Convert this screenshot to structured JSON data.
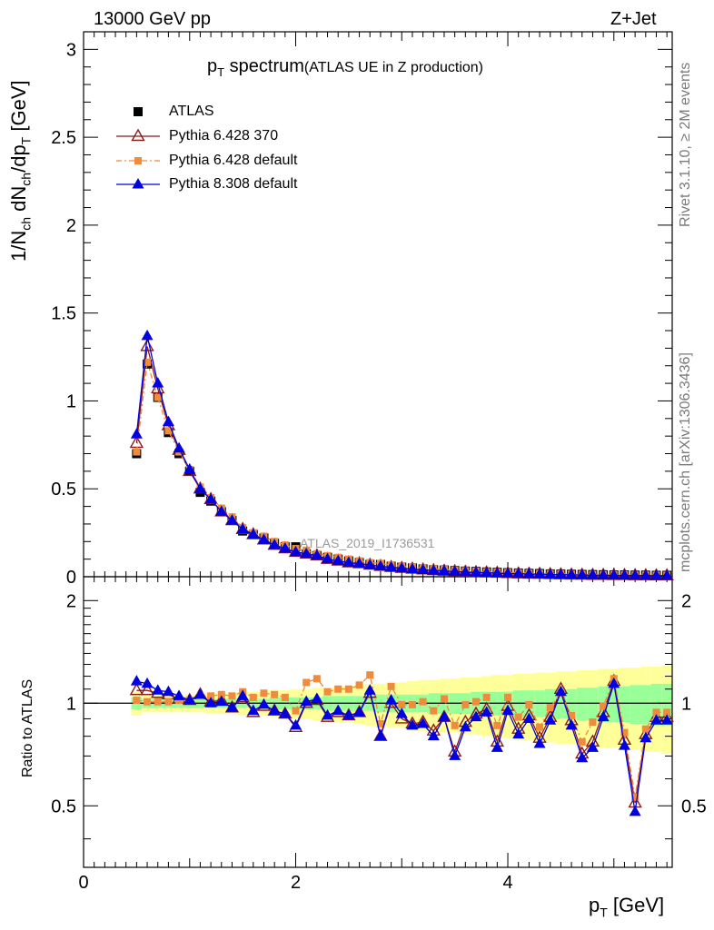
{
  "header": {
    "energy": "13000 GeV pp",
    "process": "Z+Jet",
    "rivet": "Rivet 3.1.10, ≥ 2M events",
    "mcplots": "mcplots.cern.ch [arXiv:1306.3436]",
    "analysis": "ATLAS_2019_I1736531"
  },
  "title": {
    "main": "p",
    "sub": "T",
    "rest": " spectrum",
    "small": "(ATLAS UE in Z production)"
  },
  "axes": {
    "top_ylabel": "1/N",
    "top_ylabel_sub1": "ch",
    "top_ylabel_mid": " dN",
    "top_ylabel_sub2": "ch",
    "top_ylabel_mid2": "/dp",
    "top_ylabel_sub3": "T",
    "top_ylabel_unit": " [GeV]",
    "bottom_ylabel": "Ratio to ATLAS",
    "xlabel_main": "p",
    "xlabel_sub": "T",
    "xlabel_unit": " [GeV]"
  },
  "chart_data": [
    {
      "type": "scatter",
      "panel": "main",
      "xlim": [
        0,
        5.55
      ],
      "ylim": [
        0,
        3.1
      ],
      "yticks": [
        0,
        0.5,
        1,
        1.5,
        2,
        2.5,
        3
      ],
      "ytick_labels": [
        "0",
        "0.5",
        "1",
        "1.5",
        "2",
        "2.5",
        "3"
      ],
      "legend_position": "top-left",
      "x": [
        0.5,
        0.6,
        0.7,
        0.8,
        0.9,
        1.0,
        1.1,
        1.2,
        1.3,
        1.4,
        1.5,
        1.6,
        1.7,
        1.8,
        1.9,
        2.0,
        2.1,
        2.2,
        2.3,
        2.4,
        2.5,
        2.6,
        2.7,
        2.8,
        2.9,
        3.0,
        3.1,
        3.2,
        3.3,
        3.4,
        3.5,
        3.6,
        3.7,
        3.8,
        3.9,
        4.0,
        4.1,
        4.2,
        4.3,
        4.4,
        4.5,
        4.6,
        4.7,
        4.8,
        4.9,
        5.0,
        5.1,
        5.2,
        5.3,
        5.4,
        5.5
      ],
      "series": [
        {
          "name": "ATLAS",
          "color": "#000000",
          "marker": "square",
          "values": [
            0.7,
            1.21,
            1.02,
            0.82,
            0.7,
            0.6,
            0.48,
            0.43,
            0.37,
            0.32,
            0.26,
            0.24,
            0.22,
            0.19,
            0.17,
            0.17,
            0.13,
            0.12,
            0.11,
            0.1,
            0.09,
            0.08,
            0.07,
            0.07,
            0.06,
            0.055,
            0.05,
            0.045,
            0.04,
            0.038,
            0.035,
            0.032,
            0.03,
            0.027,
            0.025,
            0.023,
            0.021,
            0.019,
            0.018,
            0.016,
            0.015,
            0.014,
            0.013,
            0.012,
            0.011,
            0.01,
            0.01,
            0.009,
            0.009,
            0.008,
            0.008
          ]
        },
        {
          "name": "Pythia 6.428 370",
          "color": "#8b1a1a",
          "marker": "triangle-open",
          "values": [
            0.76,
            1.31,
            1.07,
            0.86,
            0.72,
            0.6,
            0.5,
            0.44,
            0.37,
            0.32,
            0.27,
            0.24,
            0.21,
            0.18,
            0.16,
            0.14,
            0.13,
            0.12,
            0.1,
            0.09,
            0.08,
            0.075,
            0.067,
            0.06,
            0.054,
            0.049,
            0.044,
            0.04,
            0.036,
            0.033,
            0.03,
            0.027,
            0.025,
            0.023,
            0.021,
            0.019,
            0.017,
            0.016,
            0.015,
            0.013,
            0.012,
            0.011,
            0.01,
            0.009,
            0.009,
            0.008,
            0.008,
            0.007,
            0.007,
            0.006,
            0.006
          ]
        },
        {
          "name": "Pythia 6.428 default",
          "color": "#f08a3c",
          "marker": "square-small",
          "values": [
            0.71,
            1.22,
            1.02,
            0.83,
            0.71,
            0.61,
            0.51,
            0.45,
            0.39,
            0.34,
            0.28,
            0.25,
            0.23,
            0.2,
            0.18,
            0.16,
            0.15,
            0.13,
            0.12,
            0.11,
            0.1,
            0.09,
            0.08,
            0.075,
            0.067,
            0.06,
            0.055,
            0.05,
            0.045,
            0.041,
            0.037,
            0.034,
            0.031,
            0.028,
            0.026,
            0.024,
            0.022,
            0.02,
            0.018,
            0.017,
            0.016,
            0.014,
            0.013,
            0.012,
            0.011,
            0.011,
            0.01,
            0.009,
            0.009,
            0.008,
            0.008
          ]
        },
        {
          "name": "Pythia 8.308 default",
          "color": "#0000e0",
          "marker": "triangle-filled",
          "values": [
            0.81,
            1.37,
            1.1,
            0.88,
            0.73,
            0.61,
            0.5,
            0.44,
            0.37,
            0.32,
            0.27,
            0.24,
            0.21,
            0.18,
            0.16,
            0.14,
            0.13,
            0.12,
            0.1,
            0.09,
            0.08,
            0.074,
            0.066,
            0.059,
            0.053,
            0.048,
            0.043,
            0.039,
            0.035,
            0.032,
            0.029,
            0.026,
            0.024,
            0.022,
            0.02,
            0.018,
            0.017,
            0.015,
            0.014,
            0.013,
            0.012,
            0.011,
            0.01,
            0.009,
            0.008,
            0.008,
            0.007,
            0.007,
            0.006,
            0.006,
            0.006
          ]
        }
      ]
    },
    {
      "type": "scatter",
      "panel": "ratio",
      "xlim": [
        0,
        5.55
      ],
      "ylim": [
        0.33,
        2.35
      ],
      "log_y": true,
      "yticks": [
        0.5,
        1,
        2
      ],
      "ytick_labels": [
        "0.5",
        "1",
        "2"
      ],
      "xticks": [
        0,
        2,
        4
      ],
      "xtick_labels": [
        "0",
        "2",
        "4"
      ],
      "x": [
        0.5,
        0.6,
        0.7,
        0.8,
        0.9,
        1.0,
        1.1,
        1.2,
        1.3,
        1.4,
        1.5,
        1.6,
        1.7,
        1.8,
        1.9,
        2.0,
        2.1,
        2.2,
        2.3,
        2.4,
        2.5,
        2.6,
        2.7,
        2.8,
        2.9,
        3.0,
        3.1,
        3.2,
        3.3,
        3.4,
        3.5,
        3.6,
        3.7,
        3.8,
        3.9,
        4.0,
        4.1,
        4.2,
        4.3,
        4.4,
        4.5,
        4.6,
        4.7,
        4.8,
        4.9,
        5.0,
        5.1,
        5.2,
        5.3,
        5.4,
        5.5
      ],
      "bands": {
        "stat_color": "#99ff99",
        "total_color": "#ffff99",
        "stat_half_width": [
          0.04,
          0.03,
          0.03,
          0.03,
          0.03,
          0.03,
          0.03,
          0.03,
          0.03,
          0.03,
          0.03,
          0.03,
          0.03,
          0.04,
          0.04,
          0.04,
          0.04,
          0.04,
          0.05,
          0.05,
          0.05,
          0.05,
          0.05,
          0.06,
          0.06,
          0.06,
          0.06,
          0.06,
          0.07,
          0.07,
          0.07,
          0.07,
          0.08,
          0.08,
          0.08,
          0.08,
          0.09,
          0.09,
          0.09,
          0.1,
          0.1,
          0.1,
          0.11,
          0.11,
          0.12,
          0.12,
          0.12,
          0.13,
          0.13,
          0.14,
          0.14
        ],
        "total_half_width": [
          0.08,
          0.06,
          0.06,
          0.06,
          0.06,
          0.06,
          0.06,
          0.07,
          0.07,
          0.07,
          0.08,
          0.08,
          0.08,
          0.09,
          0.09,
          0.1,
          0.1,
          0.11,
          0.11,
          0.12,
          0.12,
          0.13,
          0.14,
          0.14,
          0.15,
          0.15,
          0.16,
          0.17,
          0.17,
          0.18,
          0.18,
          0.19,
          0.19,
          0.2,
          0.21,
          0.21,
          0.22,
          0.22,
          0.23,
          0.23,
          0.24,
          0.24,
          0.25,
          0.25,
          0.26,
          0.26,
          0.27,
          0.27,
          0.28,
          0.28,
          0.29
        ]
      },
      "series": [
        {
          "name": "Pythia 6.428 370",
          "color": "#8b1a1a",
          "marker": "triangle-open",
          "values": [
            1.09,
            1.09,
            1.07,
            1.06,
            1.03,
            1.02,
            1.06,
            1.01,
            1.02,
            0.97,
            1.04,
            0.94,
            0.98,
            0.95,
            0.93,
            0.85,
            1.0,
            1.02,
            0.91,
            0.94,
            0.92,
            0.94,
            1.07,
            0.8,
            1.0,
            0.9,
            0.87,
            0.88,
            0.83,
            0.91,
            0.72,
            0.88,
            0.93,
            0.96,
            0.77,
            0.98,
            0.84,
            0.92,
            0.79,
            0.91,
            1.1,
            0.89,
            0.71,
            0.77,
            0.94,
            1.16,
            0.78,
            0.51,
            0.81,
            0.91,
            0.91
          ]
        },
        {
          "name": "Pythia 6.428 default",
          "color": "#f08a3c",
          "marker": "square-small",
          "values": [
            1.02,
            1.01,
            1.01,
            1.01,
            1.02,
            1.02,
            1.05,
            1.05,
            1.06,
            1.05,
            1.08,
            1.04,
            1.07,
            1.06,
            1.04,
            0.95,
            1.15,
            1.18,
            1.08,
            1.1,
            1.1,
            1.13,
            1.21,
            0.87,
            1.12,
            0.99,
            0.99,
            1.01,
            0.95,
            1.03,
            0.86,
            0.99,
            1.01,
            1.04,
            0.86,
            1.04,
            0.91,
            0.99,
            0.85,
            0.97,
            1.07,
            0.92,
            0.77,
            0.88,
            0.98,
            1.18,
            0.82,
            0.53,
            0.84,
            0.94,
            0.94
          ]
        },
        {
          "name": "Pythia 8.308 default",
          "color": "#0000e0",
          "marker": "triangle-filled",
          "values": [
            1.16,
            1.14,
            1.09,
            1.08,
            1.05,
            1.02,
            1.06,
            1.0,
            1.01,
            0.97,
            1.05,
            0.95,
            0.99,
            0.95,
            0.93,
            0.86,
            1.01,
            1.03,
            0.92,
            0.95,
            0.92,
            0.94,
            1.09,
            0.8,
            1.02,
            0.93,
            0.86,
            0.87,
            0.8,
            0.91,
            0.7,
            0.85,
            0.91,
            0.94,
            0.74,
            0.95,
            0.81,
            0.9,
            0.76,
            0.89,
            1.08,
            0.86,
            0.69,
            0.74,
            0.91,
            1.14,
            0.75,
            0.48,
            0.79,
            0.89,
            0.89
          ]
        }
      ]
    }
  ]
}
